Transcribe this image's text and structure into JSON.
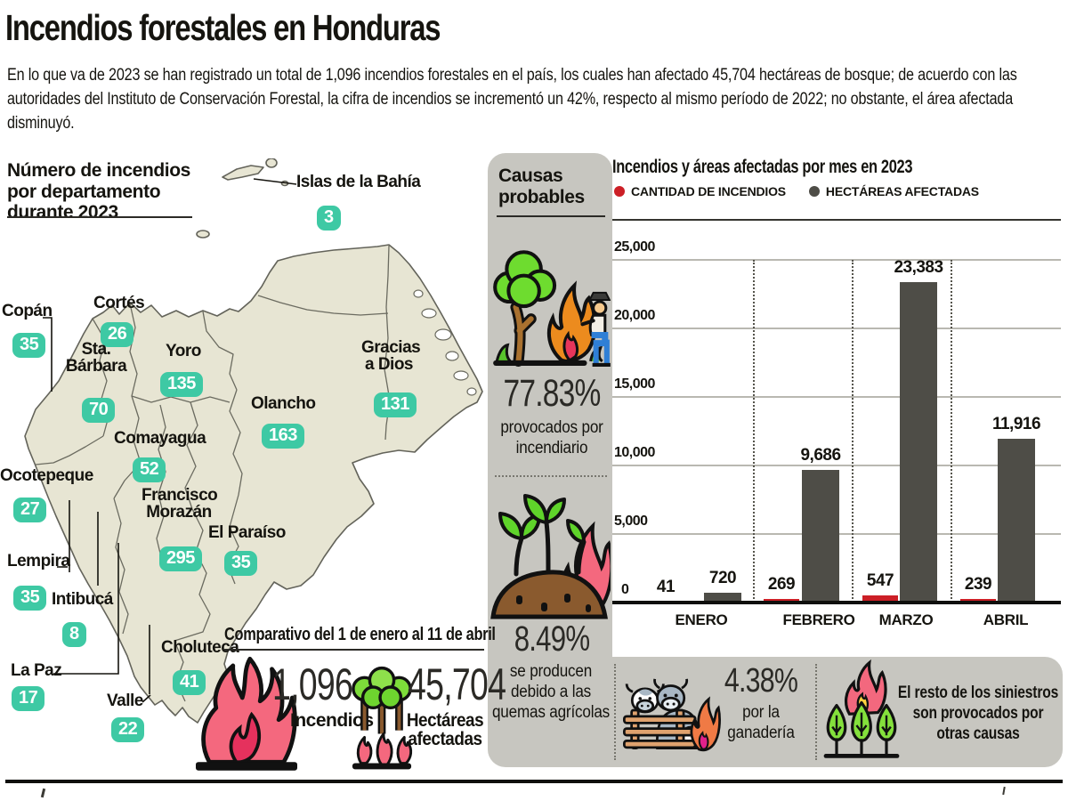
{
  "header": {
    "title": "Incendios forestales en Honduras",
    "intro": "En lo que va de 2023 se han registrado un total de 1,096 incendios forestales en el país, los cuales han afectado 45,704 hectáreas de bosque; de acuerdo con las autoridades del Instituto de Conservación Forestal, la cifra de incendios se incrementó un 42%, respecto al mismo período de 2022; no obstante, el área afectada disminuyó.",
    "accent_color": "#cc1f26"
  },
  "map": {
    "heading": "Número de incendios por departamento durante 2023",
    "badge_color": "#3ec9a4",
    "land_color": "#e7e5d3",
    "departments": [
      {
        "name": "Islas de la Bahía",
        "count": "3"
      },
      {
        "name": "Copán",
        "count": "35"
      },
      {
        "name": "Cortés",
        "count": "26"
      },
      {
        "name": "Sta. Bárbara",
        "count": "70"
      },
      {
        "name": "Yoro",
        "count": "135"
      },
      {
        "name": "Olancho",
        "count": "163"
      },
      {
        "name": "Gracias a Dios",
        "count": "131"
      },
      {
        "name": "Comayagua",
        "count": "52"
      },
      {
        "name": "Ocotepeque",
        "count": "27"
      },
      {
        "name": "Francisco Morazán",
        "count": "295"
      },
      {
        "name": "El Paraíso",
        "count": "35"
      },
      {
        "name": "Lempira",
        "count": "35"
      },
      {
        "name": "Intibucá",
        "count": "8"
      },
      {
        "name": "La Paz",
        "count": "17"
      },
      {
        "name": "Valle",
        "count": "22"
      },
      {
        "name": "Choluteca",
        "count": "41"
      }
    ]
  },
  "causes": {
    "heading": "Causas probables",
    "items": [
      {
        "pct": "77.83%",
        "text": "provocados por incendiario",
        "icon": "arsonist-icon"
      },
      {
        "pct": "8.49%",
        "text": "se producen debido a las quemas agrícolas",
        "icon": "crop-burning-icon"
      },
      {
        "pct": "4.38%",
        "text": "por la ganadería",
        "icon": "cattle-icon"
      },
      {
        "pct": "",
        "text": "El resto de los siniestros son provocados por otras causas",
        "icon": "burning-trees-icon"
      }
    ]
  },
  "comparative": {
    "heading": "Comparativo del 1 de enero al 11 de abril",
    "fires": {
      "value": "1,096",
      "label": "Incendios"
    },
    "hectares": {
      "value": "45,704",
      "label": "Hectáreas afectadas"
    }
  },
  "chart_data": {
    "type": "bar",
    "title": "Incendios y áreas afectadas por mes en 2023",
    "categories": [
      "ENERO",
      "FEBRERO",
      "MARZO",
      "ABRIL"
    ],
    "series": [
      {
        "name": "CANTIDAD DE INCENDIOS",
        "color": "#cc1f26",
        "values": [
          41,
          269,
          547,
          239
        ],
        "labels": [
          "41",
          "269",
          "547",
          "239"
        ]
      },
      {
        "name": "HECTÁREAS AFECTADAS",
        "color": "#4e4d47",
        "values": [
          720,
          9686,
          23383,
          11916
        ],
        "labels": [
          "720",
          "9,686",
          "23,383",
          "11,916"
        ]
      }
    ],
    "ylim": [
      0,
      25000
    ],
    "y_ticks": [
      0,
      5000,
      10000,
      15000,
      20000,
      25000
    ],
    "y_tick_labels": [
      "0",
      "5,000",
      "10,000",
      "15,000",
      "20,000",
      "25,000"
    ],
    "grid": "horizontal solid gridlines, dotted vertical month separators",
    "legend_position": "top-left"
  }
}
